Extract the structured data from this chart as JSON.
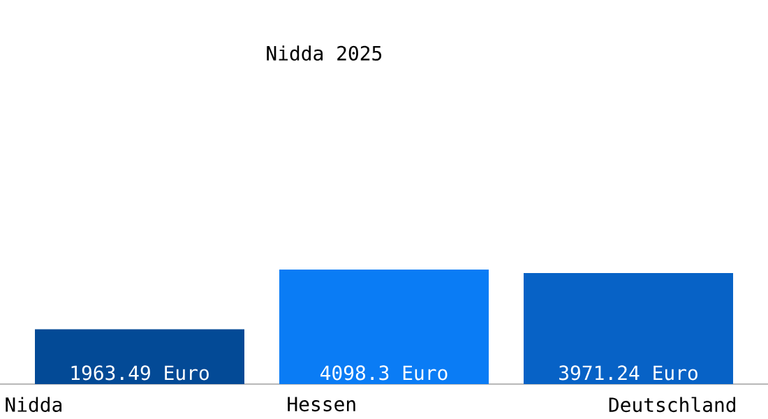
{
  "chart_data": {
    "type": "bar",
    "title": "Nidda 2025",
    "categories": [
      "Nidda",
      "Hessen",
      "Deutschland"
    ],
    "values": [
      1963.49,
      4098.3,
      3971.24
    ],
    "colors": [
      "#034a96",
      "#0a7cf5",
      "#0762c6"
    ],
    "value_labels": [
      "1963.49 Euro",
      "4098.3 Euro",
      "3971.24 Euro"
    ],
    "tick_labels": "x"
  }
}
